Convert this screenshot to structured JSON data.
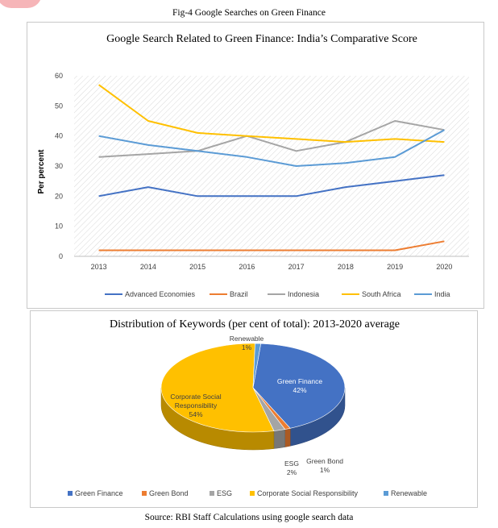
{
  "figure_title": "Fig-4 Google Searches on Green Finance",
  "source_note": "Source: RBI Staff Calculations using google search data",
  "chart_data": [
    {
      "type": "line",
      "title": "Google Search Related to Green Finance: India’s Comparative Score",
      "xlabel": "",
      "ylabel": "Per percent",
      "x": [
        "2013",
        "2014",
        "2015",
        "2016",
        "2017",
        "2018",
        "2019",
        "2020"
      ],
      "ylim": [
        0,
        60
      ],
      "yticks": [
        "0",
        "10",
        "20",
        "30",
        "40",
        "50",
        "60"
      ],
      "grid": "hatched plot background",
      "legend_position": "bottom",
      "series": [
        {
          "name": "Advanced Economies",
          "color": "#4472c4",
          "values": [
            20,
            23,
            20,
            20,
            20,
            23,
            25,
            27
          ]
        },
        {
          "name": "Brazil",
          "color": "#ed7d31",
          "values": [
            2,
            2,
            2,
            2,
            2,
            2,
            2,
            5
          ]
        },
        {
          "name": "Indonesia",
          "color": "#a5a5a5",
          "values": [
            33,
            34,
            35,
            40,
            35,
            38,
            45,
            42
          ]
        },
        {
          "name": "South Africa",
          "color": "#ffc000",
          "values": [
            57,
            45,
            41,
            40,
            39,
            38,
            39,
            38
          ]
        },
        {
          "name": "India",
          "color": "#5b9bd5",
          "values": [
            40,
            37,
            35,
            33,
            30,
            31,
            33,
            42
          ]
        }
      ]
    },
    {
      "type": "pie",
      "title": "Distribution of Keywords (per cent of total): 2013-2020 average",
      "legend_position": "bottom",
      "slices": [
        {
          "name": "Green Finance",
          "value": 42,
          "label": "42%",
          "color": "#4472c4"
        },
        {
          "name": "Green Bond",
          "value": 1,
          "label": "1%",
          "color": "#ed7d31"
        },
        {
          "name": "ESG",
          "value": 2,
          "label": "2%",
          "color": "#a5a5a5"
        },
        {
          "name": "Corporate Social Responsibility",
          "value": 54,
          "label": "54%",
          "color": "#ffc000"
        },
        {
          "name": "Renewable",
          "value": 1,
          "label": "1%",
          "color": "#5b9bd5"
        }
      ]
    }
  ]
}
